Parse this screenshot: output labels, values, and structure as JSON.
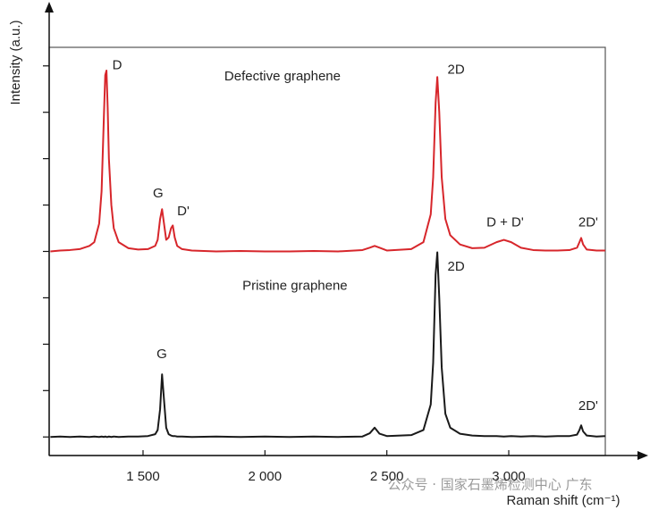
{
  "chart_data": {
    "type": "line",
    "x_label": "Raman shift (cm⁻¹)",
    "y_label": "Intensity (a.u.)",
    "xlim": [
      1115,
      3396
    ],
    "ylim": [
      -0.4,
      8.4
    ],
    "xticks": [
      {
        "value": 1500,
        "label": "1 500"
      },
      {
        "value": 2000,
        "label": "2 000"
      },
      {
        "value": 2500,
        "label": "2 500"
      },
      {
        "value": 3000,
        "label": "3 000"
      }
    ],
    "yticks": [
      0,
      1,
      2,
      3,
      4,
      5,
      6,
      7,
      8
    ],
    "x": [
      1120,
      1160,
      1200,
      1240,
      1280,
      1300,
      1320,
      1330,
      1340,
      1345,
      1350,
      1355,
      1360,
      1370,
      1380,
      1400,
      1440,
      1480,
      1520,
      1550,
      1560,
      1570,
      1578,
      1586,
      1595,
      1605,
      1615,
      1622,
      1630,
      1640,
      1660,
      1700,
      1800,
      1900,
      2000,
      2100,
      2200,
      2300,
      2400,
      2430,
      2450,
      2470,
      2500,
      2600,
      2650,
      2680,
      2690,
      2700,
      2707,
      2715,
      2725,
      2740,
      2760,
      2800,
      2850,
      2900,
      2950,
      2980,
      3010,
      3050,
      3100,
      3150,
      3200,
      3250,
      3280,
      3290,
      3297,
      3305,
      3320,
      3360,
      3396
    ],
    "series": [
      {
        "color": "#d7262b",
        "values": [
          4.0,
          4.02,
          4.03,
          4.05,
          4.12,
          4.2,
          4.6,
          5.3,
          7.0,
          7.8,
          7.9,
          7.1,
          6.0,
          5.0,
          4.5,
          4.2,
          4.07,
          4.04,
          4.05,
          4.12,
          4.25,
          4.7,
          4.91,
          4.6,
          4.25,
          4.3,
          4.5,
          4.56,
          4.3,
          4.12,
          4.05,
          4.02,
          4.0,
          4.01,
          4.0,
          4.0,
          4.01,
          4.0,
          4.03,
          4.08,
          4.12,
          4.08,
          4.02,
          4.05,
          4.2,
          4.8,
          5.6,
          7.2,
          7.76,
          7.0,
          5.6,
          4.7,
          4.35,
          4.15,
          4.07,
          4.08,
          4.2,
          4.25,
          4.2,
          4.08,
          4.03,
          4.02,
          4.02,
          4.03,
          4.08,
          4.2,
          4.29,
          4.15,
          4.04,
          4.02,
          4.02
        ]
      },
      {
        "color": "#1a1a1a",
        "values": [
          0.0,
          0.01,
          0.0,
          0.01,
          0.0,
          0.01,
          0.0,
          0.01,
          0.0,
          0.01,
          0.0,
          0.0,
          0.01,
          0.0,
          0.01,
          0.0,
          0.01,
          0.01,
          0.02,
          0.06,
          0.15,
          0.6,
          1.35,
          0.8,
          0.2,
          0.06,
          0.03,
          0.02,
          0.02,
          0.01,
          0.01,
          0.0,
          0.01,
          0.0,
          0.01,
          0.0,
          0.01,
          0.0,
          0.01,
          0.08,
          0.2,
          0.07,
          0.02,
          0.04,
          0.15,
          0.7,
          1.6,
          3.5,
          3.98,
          3.0,
          1.5,
          0.5,
          0.2,
          0.07,
          0.03,
          0.02,
          0.02,
          0.01,
          0.02,
          0.01,
          0.02,
          0.01,
          0.02,
          0.02,
          0.05,
          0.15,
          0.25,
          0.12,
          0.03,
          0.01,
          0.02
        ]
      }
    ],
    "annotations": [
      {
        "text": "D",
        "x": 1394,
        "y": 8.0
      },
      {
        "text": "G",
        "x": 1562,
        "y": 5.24
      },
      {
        "text": "D'",
        "x": 1665,
        "y": 4.86
      },
      {
        "text": "Defective graphene",
        "x": 2072,
        "y": 7.76
      },
      {
        "text": "2D",
        "x": 2784,
        "y": 7.91
      },
      {
        "text": "D + D'",
        "x": 2985,
        "y": 4.62
      },
      {
        "text": "2D'",
        "x": 3326,
        "y": 4.62
      },
      {
        "text": "Pristine graphene",
        "x": 2123,
        "y": 3.25
      },
      {
        "text": "2D",
        "x": 2784,
        "y": 3.66
      },
      {
        "text": "G",
        "x": 1577,
        "y": 1.78
      },
      {
        "text": "2D'",
        "x": 3326,
        "y": 0.66
      }
    ],
    "watermark": "公众号 · 国家石墨烯检测中心 广东"
  }
}
